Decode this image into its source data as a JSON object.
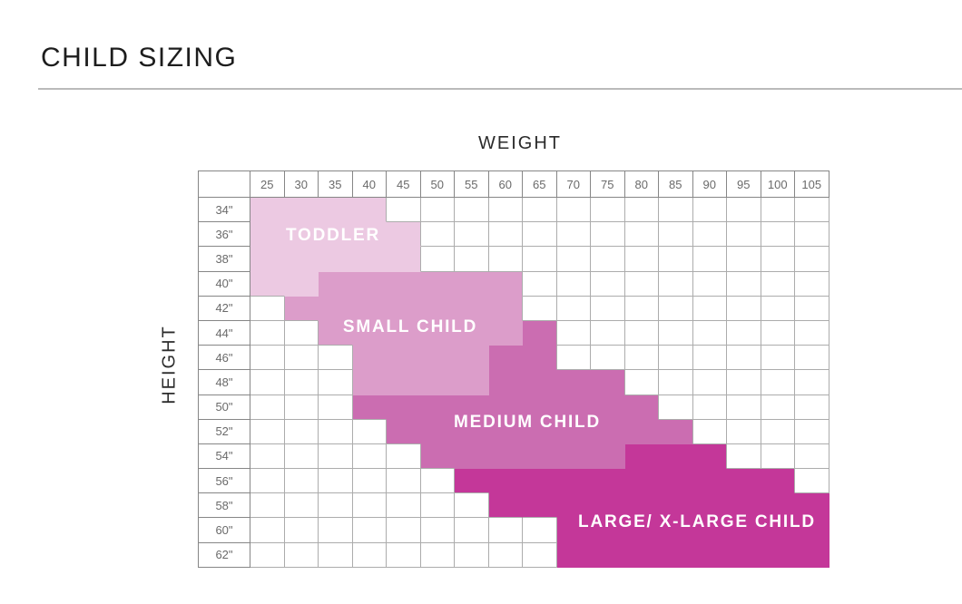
{
  "title": "CHILD SIZING",
  "axes": {
    "x": "WEIGHT",
    "y": "HEIGHT"
  },
  "chart_data": {
    "type": "heatmap",
    "title": "CHILD SIZING",
    "x_axis_label": "WEIGHT",
    "y_axis_label": "HEIGHT",
    "columns_weight_lb": [
      25,
      30,
      35,
      40,
      45,
      50,
      55,
      60,
      65,
      70,
      75,
      80,
      85,
      90,
      95,
      100,
      105
    ],
    "rows_height_in": [
      34,
      36,
      38,
      40,
      42,
      44,
      46,
      48,
      50,
      52,
      54,
      56,
      58,
      60,
      62
    ],
    "row_label_suffix": "\"",
    "grid_on": true,
    "regions": [
      {
        "name": "TODDLER",
        "color": "#ecc9e2",
        "cells_by_height": [
          {
            "height_in": 34,
            "weight_from_lb": 25,
            "weight_to_lb": 40
          },
          {
            "height_in": 36,
            "weight_from_lb": 25,
            "weight_to_lb": 45
          },
          {
            "height_in": 38,
            "weight_from_lb": 25,
            "weight_to_lb": 45
          },
          {
            "height_in": 40,
            "weight_from_lb": 25,
            "weight_to_lb": 30
          }
        ]
      },
      {
        "name": "SMALL CHILD",
        "color": "#dc9dca",
        "cells_by_height": [
          {
            "height_in": 40,
            "weight_from_lb": 35,
            "weight_to_lb": 60
          },
          {
            "height_in": 42,
            "weight_from_lb": 30,
            "weight_to_lb": 60
          },
          {
            "height_in": 44,
            "weight_from_lb": 35,
            "weight_to_lb": 60
          },
          {
            "height_in": 46,
            "weight_from_lb": 40,
            "weight_to_lb": 55
          },
          {
            "height_in": 48,
            "weight_from_lb": 40,
            "weight_to_lb": 55
          }
        ]
      },
      {
        "name": "MEDIUM CHILD",
        "color": "#cb6db1",
        "cells_by_height": [
          {
            "height_in": 44,
            "weight_from_lb": 65,
            "weight_to_lb": 65
          },
          {
            "height_in": 46,
            "weight_from_lb": 60,
            "weight_to_lb": 65
          },
          {
            "height_in": 48,
            "weight_from_lb": 60,
            "weight_to_lb": 75
          },
          {
            "height_in": 50,
            "weight_from_lb": 40,
            "weight_to_lb": 80
          },
          {
            "height_in": 52,
            "weight_from_lb": 45,
            "weight_to_lb": 85
          },
          {
            "height_in": 54,
            "weight_from_lb": 50,
            "weight_to_lb": 75
          }
        ]
      },
      {
        "name": "LARGE/ X-LARGE CHILD",
        "color": "#c43799",
        "cells_by_height": [
          {
            "height_in": 54,
            "weight_from_lb": 80,
            "weight_to_lb": 90
          },
          {
            "height_in": 56,
            "weight_from_lb": 55,
            "weight_to_lb": 100
          },
          {
            "height_in": 58,
            "weight_from_lb": 60,
            "weight_to_lb": 105
          },
          {
            "height_in": 60,
            "weight_from_lb": 70,
            "weight_to_lb": 105
          },
          {
            "height_in": 62,
            "weight_from_lb": 70,
            "weight_to_lb": 105
          }
        ]
      }
    ]
  }
}
